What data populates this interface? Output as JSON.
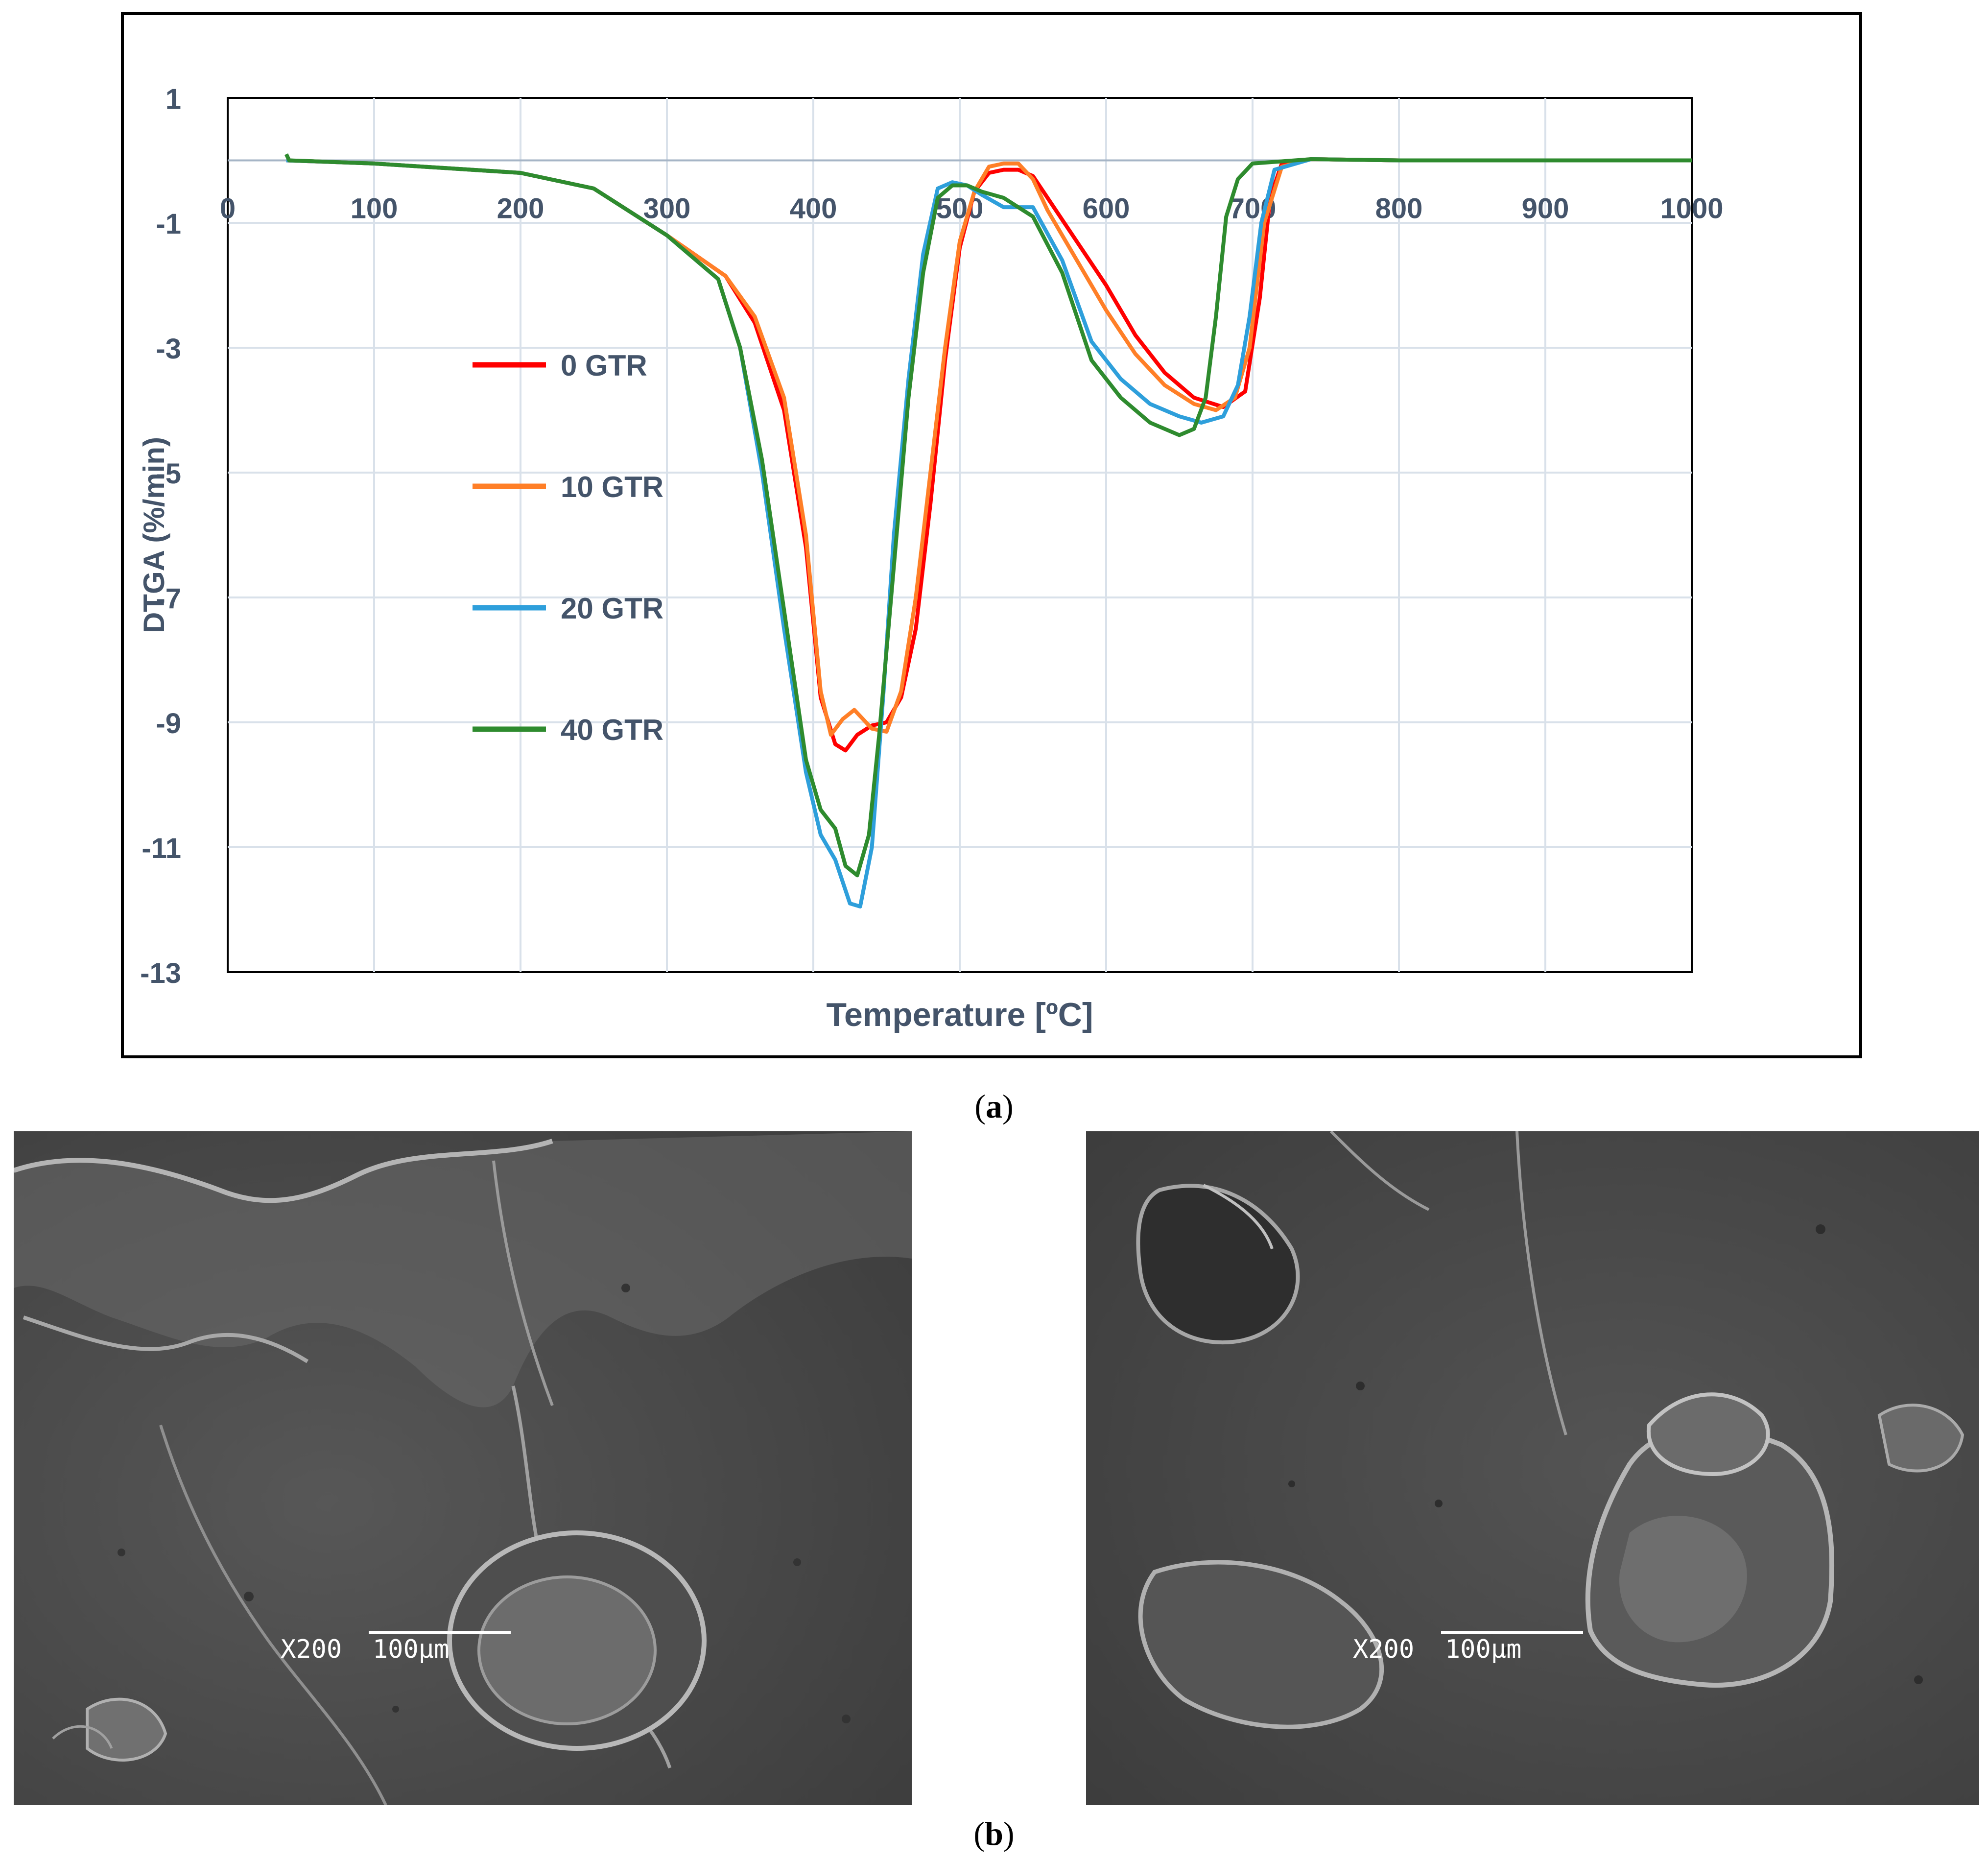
{
  "panel_a_label": "a",
  "panel_b_label": "b",
  "colors": {
    "axis_text": "#44546a",
    "grid": "#d9e1ea",
    "frame": "#000000",
    "zero_line": "#a6b5c6"
  },
  "chart_data": {
    "type": "line",
    "title": "",
    "xlabel": "Temperature [ºC]",
    "ylabel": "DTGA  (%/min)",
    "xlim": [
      0,
      1000
    ],
    "ylim": [
      -13,
      1
    ],
    "xticks": [
      0,
      100,
      200,
      300,
      400,
      500,
      600,
      700,
      800,
      900,
      1000
    ],
    "yticks": [
      1,
      -1,
      -3,
      -5,
      -7,
      -9,
      -11,
      -13
    ],
    "grid": true,
    "legend_position": "inside-left",
    "series": [
      {
        "name": "0 GTR",
        "color": "#ff0000",
        "x": [
          40,
          100,
          200,
          250,
          300,
          340,
          360,
          380,
          395,
          405,
          415,
          422,
          430,
          440,
          450,
          460,
          470,
          480,
          490,
          500,
          510,
          520,
          530,
          540,
          550,
          560,
          580,
          600,
          620,
          640,
          660,
          680,
          695,
          705,
          712,
          720,
          740,
          800,
          900,
          1000
        ],
        "y": [
          0.0,
          -0.05,
          -0.2,
          -0.45,
          -1.2,
          -1.85,
          -2.6,
          -4.0,
          -6.2,
          -8.6,
          -9.35,
          -9.45,
          -9.2,
          -9.05,
          -9.0,
          -8.6,
          -7.5,
          -5.5,
          -3.2,
          -1.4,
          -0.5,
          -0.2,
          -0.15,
          -0.15,
          -0.25,
          -0.6,
          -1.3,
          -2.0,
          -2.8,
          -3.4,
          -3.8,
          -3.95,
          -3.7,
          -2.2,
          -0.6,
          -0.05,
          0.02,
          0.0,
          0.0,
          0.0
        ]
      },
      {
        "name": "10 GTR",
        "color": "#ff7f27",
        "x": [
          40,
          100,
          200,
          250,
          300,
          340,
          360,
          380,
          395,
          405,
          412,
          420,
          428,
          440,
          450,
          460,
          470,
          480,
          490,
          500,
          510,
          520,
          530,
          540,
          550,
          560,
          580,
          600,
          620,
          640,
          660,
          675,
          688,
          698,
          708,
          720,
          740,
          800,
          900,
          1000
        ],
        "y": [
          0.0,
          -0.05,
          -0.2,
          -0.45,
          -1.2,
          -1.85,
          -2.5,
          -3.8,
          -6.0,
          -8.5,
          -9.2,
          -8.95,
          -8.8,
          -9.1,
          -9.15,
          -8.5,
          -7.0,
          -5.0,
          -3.0,
          -1.3,
          -0.5,
          -0.1,
          -0.05,
          -0.05,
          -0.3,
          -0.8,
          -1.6,
          -2.4,
          -3.1,
          -3.6,
          -3.9,
          -4.0,
          -3.8,
          -3.0,
          -1.0,
          -0.1,
          0.02,
          0.0,
          0.0,
          0.0
        ]
      },
      {
        "name": "20 GTR",
        "color": "#2e9fdb",
        "x": [
          40,
          100,
          200,
          250,
          300,
          335,
          350,
          365,
          380,
          395,
          405,
          415,
          425,
          432,
          440,
          448,
          455,
          465,
          475,
          485,
          495,
          505,
          515,
          530,
          550,
          570,
          590,
          610,
          630,
          650,
          665,
          680,
          690,
          698,
          706,
          715,
          740,
          800,
          900,
          1000
        ],
        "y": [
          0.0,
          -0.05,
          -0.2,
          -0.45,
          -1.2,
          -1.9,
          -3.0,
          -5.0,
          -7.5,
          -9.8,
          -10.8,
          -11.2,
          -11.9,
          -11.95,
          -11.0,
          -8.5,
          -6.0,
          -3.5,
          -1.5,
          -0.45,
          -0.35,
          -0.4,
          -0.55,
          -0.75,
          -0.75,
          -1.6,
          -2.9,
          -3.5,
          -3.9,
          -4.1,
          -4.2,
          -4.1,
          -3.6,
          -2.5,
          -1.0,
          -0.15,
          0.02,
          0.0,
          0.0,
          0.0
        ]
      },
      {
        "name": "40 GTR",
        "color": "#2e8b2e",
        "x": [
          40,
          42,
          100,
          200,
          250,
          300,
          335,
          350,
          365,
          380,
          395,
          405,
          415,
          422,
          430,
          438,
          445,
          455,
          465,
          475,
          485,
          495,
          505,
          515,
          530,
          550,
          570,
          590,
          610,
          630,
          650,
          660,
          668,
          675,
          682,
          690,
          700,
          740,
          800,
          900,
          1000
        ],
        "y": [
          0.1,
          0.0,
          -0.05,
          -0.2,
          -0.45,
          -1.2,
          -1.9,
          -3.0,
          -4.8,
          -7.2,
          -9.6,
          -10.4,
          -10.7,
          -11.3,
          -11.45,
          -10.8,
          -9.2,
          -6.5,
          -3.8,
          -1.8,
          -0.6,
          -0.4,
          -0.4,
          -0.5,
          -0.6,
          -0.9,
          -1.8,
          -3.2,
          -3.8,
          -4.2,
          -4.4,
          -4.3,
          -3.8,
          -2.5,
          -0.9,
          -0.3,
          -0.05,
          0.02,
          0.0,
          0.0,
          0.0
        ]
      }
    ]
  },
  "sem_images": [
    {
      "scale_text": "X200  100μm"
    },
    {
      "scale_text": "X200  100μm"
    }
  ]
}
